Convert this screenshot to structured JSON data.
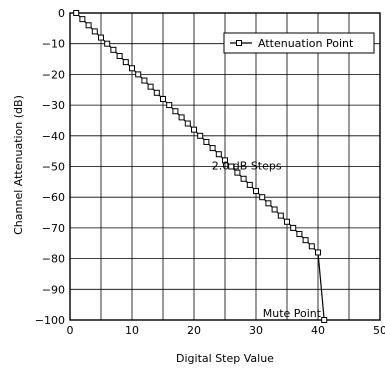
{
  "chart_data": {
    "type": "line",
    "title": "",
    "xlabel": "Digital Step Value",
    "ylabel": "Channel Attenuation (dB)",
    "xlim": [
      0,
      50
    ],
    "ylim": [
      -100,
      0
    ],
    "xticks": [
      0,
      10,
      20,
      30,
      40,
      50
    ],
    "yticks": [
      0,
      -10,
      -20,
      -30,
      -40,
      -50,
      -60,
      -70,
      -80,
      -90,
      -100
    ],
    "grid": true,
    "legend": {
      "placement": "top-right",
      "entries": [
        "Attenuation Point"
      ]
    },
    "series": [
      {
        "name": "Attenuation Point",
        "x": [
          1,
          2,
          3,
          4,
          5,
          6,
          7,
          8,
          9,
          10,
          11,
          12,
          13,
          14,
          15,
          16,
          17,
          18,
          19,
          20,
          21,
          22,
          23,
          24,
          25,
          26,
          27,
          28,
          29,
          30,
          31,
          32,
          33,
          34,
          35,
          36,
          37,
          38,
          39,
          40,
          41
        ],
        "y": [
          0,
          -2,
          -4,
          -6,
          -8,
          -10,
          -12,
          -14,
          -16,
          -18,
          -20,
          -22,
          -24,
          -26,
          -28,
          -30,
          -32,
          -34,
          -36,
          -38,
          -40,
          -42,
          -44,
          -46,
          -48,
          -50,
          -52,
          -54,
          -56,
          -58,
          -60,
          -62,
          -64,
          -66,
          -68,
          -70,
          -72,
          -74,
          -76,
          -78,
          -100
        ]
      }
    ],
    "annotations": [
      {
        "text": "2.0 dB Steps",
        "x": 28.5,
        "y": -51
      },
      {
        "text": "Mute Point",
        "x": 40.5,
        "y": -99
      }
    ]
  }
}
